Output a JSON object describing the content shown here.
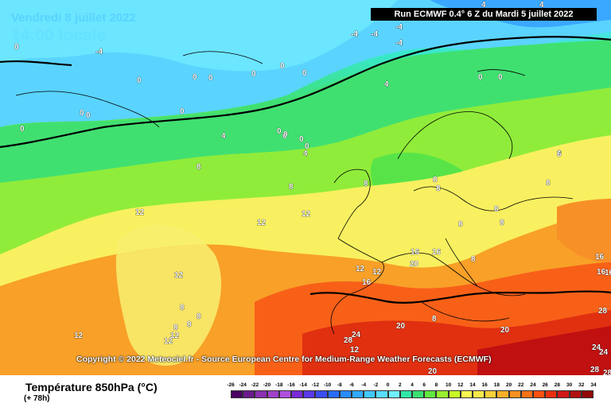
{
  "header": {
    "date": "Vendredi 8 juillet 2022",
    "local_time": "14:00 locale",
    "run_info": "Run ECMWF 0.4° 6 Z du Mardi 5 juillet 2022"
  },
  "copyright": "Copyright © 2022 Meteociel.fr - Source European Centre for Medium-Range Weather Forecasts (ECMWF)",
  "footer": {
    "title": "Température 850hPa (°C)",
    "forecast_hour": "(+ 78h)"
  },
  "legend": {
    "ticks": [
      "-26",
      "-24",
      "-22",
      "-20",
      "-18",
      "-16",
      "-14",
      "-12",
      "-10",
      "-8",
      "-6",
      "-4",
      "-2",
      "0",
      "2",
      "4",
      "6",
      "8",
      "10",
      "12",
      "14",
      "16",
      "18",
      "20",
      "22",
      "24",
      "26",
      "28",
      "30",
      "32",
      "34"
    ],
    "colors": [
      "#4a0060",
      "#6a1b8a",
      "#8a2fb0",
      "#a040c8",
      "#b050e0",
      "#7a2ad8",
      "#5a3ae8",
      "#3a4ef0",
      "#2a6cf8",
      "#2a8cff",
      "#30aaff",
      "#40c8ff",
      "#58dcff",
      "#70f0ff",
      "#30e8a8",
      "#38e070",
      "#60e840",
      "#98f030",
      "#c8f828",
      "#f8f850",
      "#f8e848",
      "#f8d038",
      "#f8b028",
      "#f89020",
      "#f87018",
      "#f85010",
      "#e83010",
      "#d01818",
      "#b01010",
      "#900808"
    ]
  },
  "map_labels": [
    "-4",
    "-4",
    "-4",
    "-4",
    "-4",
    "0",
    "0",
    "0",
    "0",
    "0",
    "0",
    "0",
    "0",
    "0",
    "0",
    "0",
    "0",
    "0",
    "0",
    "0",
    "4",
    "4",
    "4",
    "4",
    "4",
    "8",
    "8",
    "8",
    "8",
    "8",
    "8",
    "8",
    "8",
    "8",
    "8",
    "8",
    "8",
    "8",
    "8",
    "8",
    "12",
    "12",
    "12",
    "12",
    "12",
    "12",
    "12",
    "12",
    "12",
    "16",
    "16",
    "16",
    "16",
    "16",
    "16",
    "20",
    "20",
    "20",
    "20",
    "24",
    "24",
    "24",
    "28",
    "28",
    "28",
    "28",
    "8",
    "6",
    "12",
    "0",
    "0",
    "0"
  ]
}
